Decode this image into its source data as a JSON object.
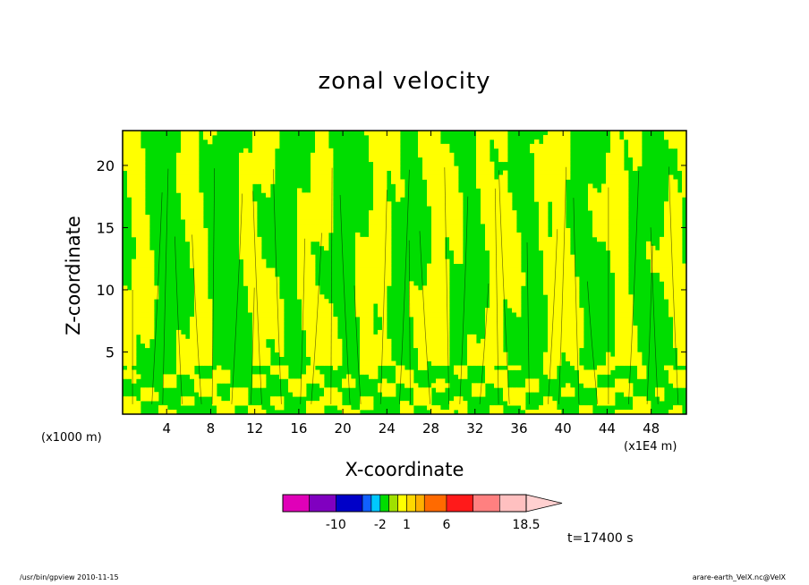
{
  "title": "zonal velocity",
  "footer": {
    "left": "/usr/bin/gpview   2010-11-15",
    "right": "arare-earth_VelX.nc@VelX"
  },
  "time_label": "t=17400 s",
  "chart_data": {
    "type": "heatmap",
    "title": "zonal velocity",
    "xlabel": "X-coordinate",
    "ylabel": "Z-coordinate",
    "x_unit_left": "(x1000 m)",
    "x_unit_right": "(x1E4 m)",
    "xlim": [
      0,
      51.2
    ],
    "ylim": [
      0,
      22.8
    ],
    "x_ticks": [
      4,
      8,
      12,
      16,
      20,
      24,
      28,
      32,
      36,
      40,
      44,
      48
    ],
    "y_ticks": [
      5,
      10,
      15,
      20
    ],
    "field_levels_shown": [
      "green",
      "yellow"
    ],
    "colors": {
      "negative_small": "#00dd00",
      "positive_small": "#ffff00",
      "contour": "#000000"
    },
    "colorbar": {
      "tick_labels": [
        "-10",
        "-2",
        "1",
        "6",
        "18.5"
      ],
      "segments": [
        {
          "color": "#e000b8",
          "units": 3
        },
        {
          "color": "#8000c0",
          "units": 3
        },
        {
          "color": "#0000c8",
          "units": 3
        },
        {
          "color": "#1060ff",
          "units": 1
        },
        {
          "color": "#00c8ff",
          "units": 1
        },
        {
          "color": "#00dd00",
          "units": 1
        },
        {
          "color": "#a0e000",
          "units": 1
        },
        {
          "color": "#ffff00",
          "units": 1
        },
        {
          "color": "#ffd800",
          "units": 1
        },
        {
          "color": "#ffb000",
          "units": 1
        },
        {
          "color": "#ff6a00",
          "units": 2.5
        },
        {
          "color": "#ff1a1a",
          "units": 3
        },
        {
          "color": "#ff8080",
          "units": 3
        },
        {
          "color": "#ffc0c0",
          "units": 3
        }
      ],
      "overflow_color": "#ffd0d0"
    }
  }
}
